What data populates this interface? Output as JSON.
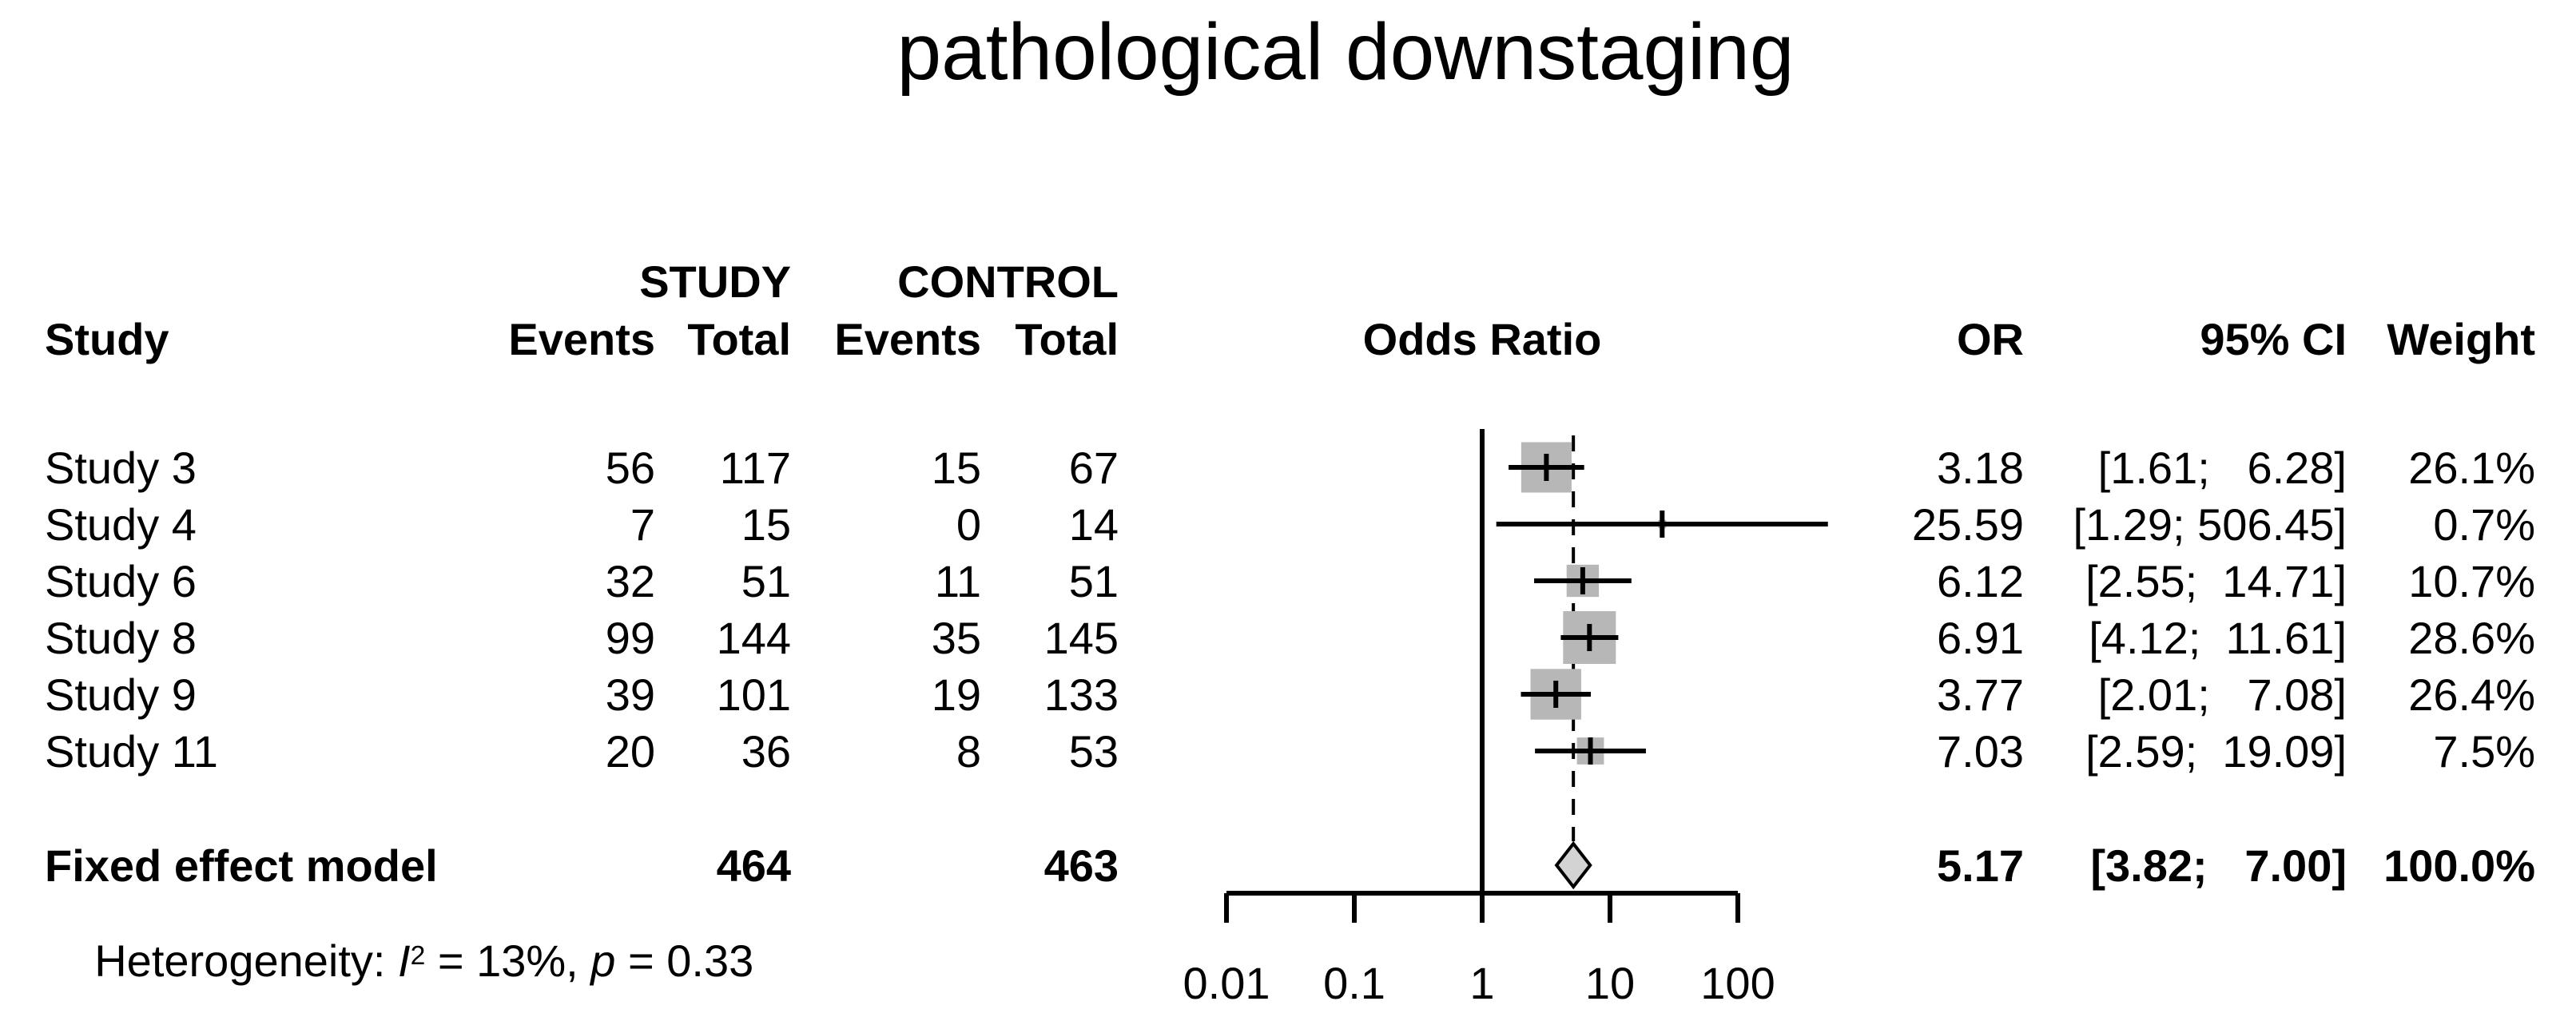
{
  "title": "pathological downstaging",
  "table": {
    "group_headers": {
      "study_group": "STUDY",
      "control_group": "CONTROL"
    },
    "headers": {
      "study": "Study",
      "study_events": "Events",
      "study_total": "Total",
      "control_events": "Events",
      "control_total": "Total",
      "odds_ratio": "Odds Ratio",
      "or": "OR",
      "ci": "95% CI",
      "weight": "Weight"
    },
    "rows": [
      {
        "label": "Study 3",
        "study_events": "56",
        "study_total": "117",
        "control_events": "15",
        "control_total": "67",
        "or": "3.18",
        "ci": "[1.61;   6.28]",
        "weight": "26.1%"
      },
      {
        "label": "Study 4",
        "study_events": "7",
        "study_total": "15",
        "control_events": "0",
        "control_total": "14",
        "or": "25.59",
        "ci": "[1.29; 506.45]",
        "weight": "0.7%"
      },
      {
        "label": "Study 6",
        "study_events": "32",
        "study_total": "51",
        "control_events": "11",
        "control_total": "51",
        "or": "6.12",
        "ci": "[2.55;  14.71]",
        "weight": "10.7%"
      },
      {
        "label": "Study 8",
        "study_events": "99",
        "study_total": "144",
        "control_events": "35",
        "control_total": "145",
        "or": "6.91",
        "ci": "[4.12;  11.61]",
        "weight": "28.6%"
      },
      {
        "label": "Study 9",
        "study_events": "39",
        "study_total": "101",
        "control_events": "19",
        "control_total": "133",
        "or": "3.77",
        "ci": "[2.01;   7.08]",
        "weight": "26.4%"
      },
      {
        "label": "Study 11",
        "study_events": "20",
        "study_total": "36",
        "control_events": "8",
        "control_total": "53",
        "or": "7.03",
        "ci": "[2.59;  19.09]",
        "weight": "7.5%"
      }
    ],
    "summary_row": {
      "label": "Fixed effect model",
      "study_total": "464",
      "control_total": "463",
      "or": "5.17",
      "ci": "[3.82;   7.00]",
      "weight": "100.0%"
    },
    "heterogeneity": {
      "prefix": "Heterogeneity: ",
      "i_symbol": "I",
      "i_exponent": "2",
      "equals_part": " = 13%, ",
      "p_symbol": "p",
      "p_value_part": " = 0.33"
    }
  },
  "chart_data": {
    "type": "forest",
    "title": "pathological downstaging",
    "x_scale": "log10",
    "x_ticks": [
      0.01,
      0.1,
      1,
      10,
      100
    ],
    "x_tick_labels": [
      "0.01",
      "0.1",
      "1",
      "10",
      "100"
    ],
    "reference_line": 1,
    "pooled_estimate_line": 5.17,
    "studies": [
      {
        "name": "Study 3",
        "or": 3.18,
        "ci_low": 1.61,
        "ci_high": 6.28,
        "weight_pct": 26.1
      },
      {
        "name": "Study 4",
        "or": 25.59,
        "ci_low": 1.29,
        "ci_high": 506.45,
        "weight_pct": 0.7
      },
      {
        "name": "Study 6",
        "or": 6.12,
        "ci_low": 2.55,
        "ci_high": 14.71,
        "weight_pct": 10.7
      },
      {
        "name": "Study 8",
        "or": 6.91,
        "ci_low": 4.12,
        "ci_high": 11.61,
        "weight_pct": 28.6
      },
      {
        "name": "Study 9",
        "or": 3.77,
        "ci_low": 2.01,
        "ci_high": 7.08,
        "weight_pct": 26.4
      },
      {
        "name": "Study 11",
        "or": 7.03,
        "ci_low": 2.59,
        "ci_high": 19.09,
        "weight_pct": 7.5
      }
    ],
    "summary": {
      "name": "Fixed effect model",
      "or": 5.17,
      "ci_low": 3.82,
      "ci_high": 7.0,
      "weight_pct": 100.0,
      "marker": "diamond"
    },
    "heterogeneity": {
      "I2": "13%",
      "p": "0.33"
    },
    "legend": "none",
    "grid": false,
    "colors": {
      "square": "#b7b7b7",
      "diamond_fill": "#d3d3d3",
      "line": "#000000",
      "text": "#000000",
      "background": "#ffffff"
    }
  }
}
